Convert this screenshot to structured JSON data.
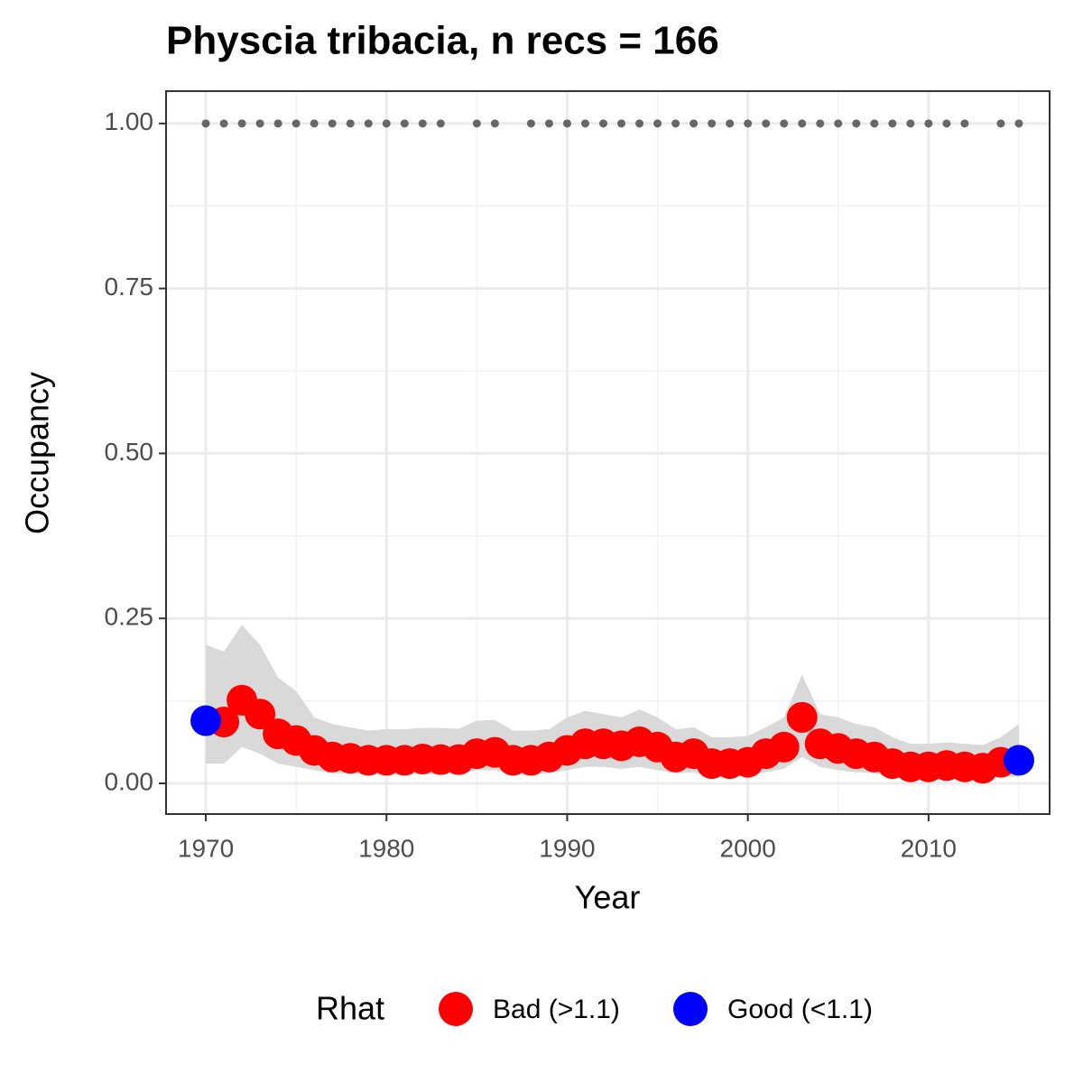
{
  "chart_data": {
    "type": "scatter",
    "title": "Physcia tribacia, n recs = 166",
    "x_label": "Year",
    "y_label": "Occupancy",
    "legend_title": "Rhat",
    "x": [
      1970,
      1971,
      1972,
      1973,
      1974,
      1975,
      1976,
      1977,
      1978,
      1979,
      1980,
      1981,
      1982,
      1983,
      1984,
      1985,
      1986,
      1987,
      1988,
      1989,
      1990,
      1991,
      1992,
      1993,
      1994,
      1995,
      1996,
      1997,
      1998,
      1999,
      2000,
      2001,
      2002,
      2003,
      2004,
      2005,
      2006,
      2007,
      2008,
      2009,
      2010,
      2011,
      2012,
      2013,
      2014,
      2015
    ],
    "series": [
      {
        "name": "Bad (>1.1)",
        "color": "#ff0000",
        "values": [
          null,
          0.093,
          0.126,
          0.105,
          0.075,
          0.065,
          0.05,
          0.04,
          0.038,
          0.035,
          0.035,
          0.035,
          0.037,
          0.036,
          0.036,
          0.045,
          0.047,
          0.035,
          0.035,
          0.04,
          0.05,
          0.06,
          0.06,
          0.057,
          0.063,
          0.055,
          0.04,
          0.045,
          0.03,
          0.03,
          0.032,
          0.045,
          0.055,
          0.1,
          0.06,
          0.053,
          0.045,
          0.04,
          0.03,
          0.025,
          0.025,
          0.027,
          0.025,
          0.023,
          0.032,
          null
        ]
      },
      {
        "name": "Good (<1.1)",
        "color": "#0000ff",
        "values": [
          0.095,
          null,
          null,
          null,
          null,
          null,
          null,
          null,
          null,
          null,
          null,
          null,
          null,
          null,
          null,
          null,
          null,
          null,
          null,
          null,
          null,
          null,
          null,
          null,
          null,
          null,
          null,
          null,
          null,
          null,
          null,
          null,
          null,
          null,
          null,
          null,
          null,
          null,
          null,
          null,
          null,
          null,
          null,
          null,
          null,
          0.035
        ]
      }
    ],
    "ribbon": {
      "color": "#d9d9d9",
      "upper": [
        0.21,
        0.2,
        0.24,
        0.21,
        0.16,
        0.14,
        0.1,
        0.09,
        0.085,
        0.08,
        0.082,
        0.082,
        0.084,
        0.084,
        0.083,
        0.095,
        0.096,
        0.08,
        0.08,
        0.082,
        0.1,
        0.11,
        0.105,
        0.1,
        0.112,
        0.1,
        0.082,
        0.085,
        0.07,
        0.07,
        0.072,
        0.085,
        0.1,
        0.165,
        0.105,
        0.1,
        0.09,
        0.085,
        0.07,
        0.06,
        0.06,
        0.062,
        0.06,
        0.058,
        0.07,
        0.09
      ],
      "lower": [
        0.03,
        0.03,
        0.055,
        0.045,
        0.03,
        0.025,
        0.02,
        0.015,
        0.015,
        0.013,
        0.013,
        0.013,
        0.014,
        0.014,
        0.014,
        0.02,
        0.02,
        0.013,
        0.013,
        0.015,
        0.02,
        0.025,
        0.025,
        0.022,
        0.025,
        0.02,
        0.015,
        0.017,
        0.01,
        0.01,
        0.012,
        0.017,
        0.022,
        0.04,
        0.025,
        0.02,
        0.017,
        0.015,
        0.01,
        0.008,
        0.008,
        0.009,
        0.008,
        0.007,
        0.01,
        0.01
      ]
    },
    "detections": {
      "color": "#666666",
      "x": [
        1970,
        1971,
        1972,
        1973,
        1974,
        1975,
        1976,
        1977,
        1978,
        1979,
        1980,
        1981,
        1982,
        1983,
        1985,
        1986,
        1988,
        1989,
        1990,
        1991,
        1992,
        1993,
        1994,
        1995,
        1996,
        1997,
        1998,
        1999,
        2000,
        2001,
        2002,
        2003,
        2004,
        2005,
        2006,
        2007,
        2008,
        2009,
        2010,
        2011,
        2012,
        2014,
        2015
      ],
      "values": [
        1,
        1,
        1,
        1,
        1,
        1,
        1,
        1,
        1,
        1,
        1,
        1,
        1,
        1,
        1,
        1,
        1,
        1,
        1,
        1,
        1,
        1,
        1,
        1,
        1,
        1,
        1,
        1,
        1,
        1,
        1,
        1,
        1,
        1,
        1,
        1,
        1,
        1,
        1,
        1,
        1,
        1,
        1
      ]
    },
    "xlim": [
      1967.8,
      2016.7
    ],
    "ylim": [
      -0.0465,
      1.049
    ],
    "xticks": [
      1970,
      1980,
      1990,
      2000,
      2010
    ],
    "yticks": [
      {
        "value": 0,
        "label": "0.00"
      },
      {
        "value": 0.25,
        "label": "0.25"
      },
      {
        "value": 0.5,
        "label": "0.50"
      },
      {
        "value": 0.75,
        "label": "0.75"
      },
      {
        "value": 1,
        "label": "1.00"
      }
    ],
    "grid": true
  }
}
